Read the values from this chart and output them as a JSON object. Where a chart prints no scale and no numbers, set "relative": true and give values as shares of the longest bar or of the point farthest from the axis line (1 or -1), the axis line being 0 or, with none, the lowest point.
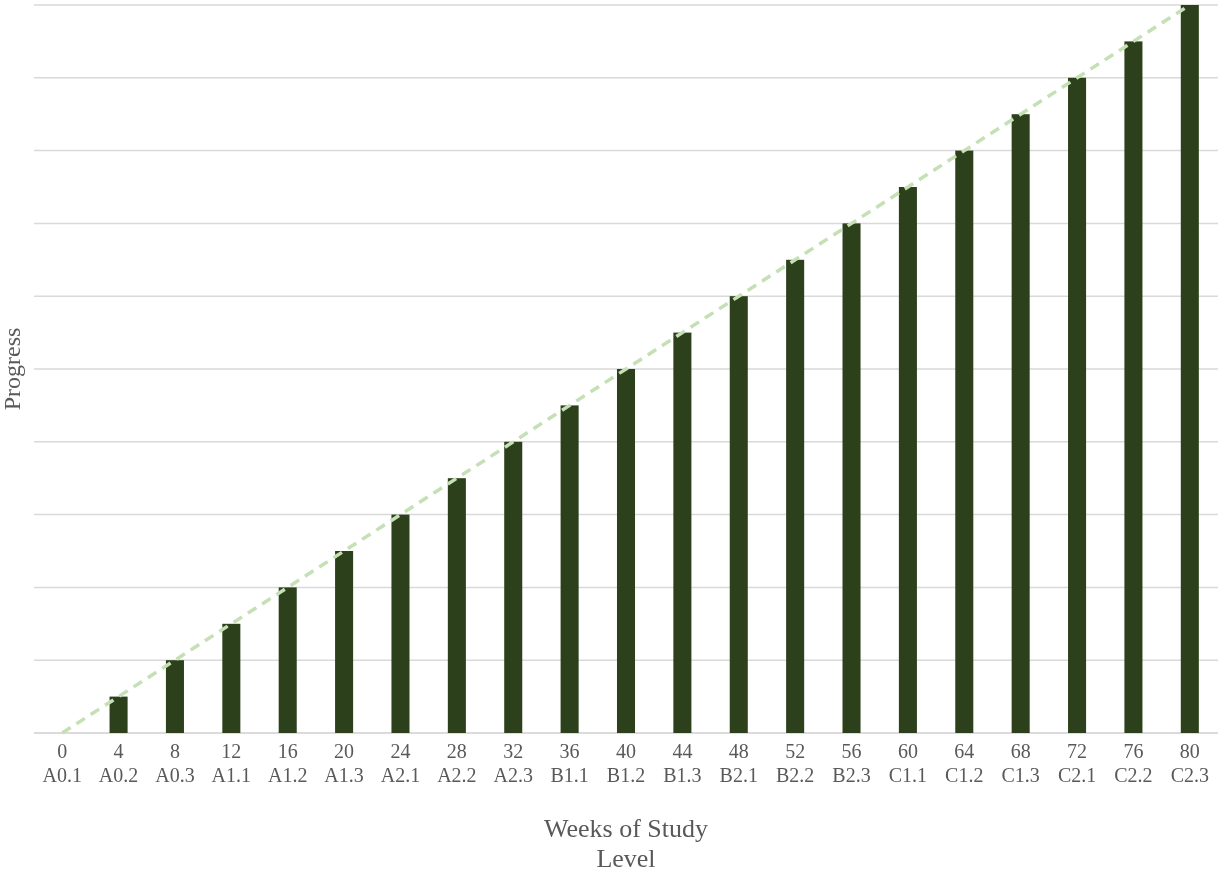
{
  "chart_data": {
    "type": "bar",
    "relative": true,
    "ylabel": "Progress",
    "xlabel": "Weeks of Study\nLevel",
    "grid": "y",
    "categories": [
      "0\nA0.1",
      "4\nA0.2",
      "8\nA0.3",
      "12\nA1.1",
      "16\nA1.2",
      "20\nA1.3",
      "24\nA2.1",
      "28\nA2.2",
      "32\nA2.3",
      "36\nB1.1",
      "40\nB1.2",
      "44\nB1.3",
      "48\nB2.1",
      "52\nB2.2",
      "56\nB2.3",
      "60\nC1.1",
      "64\nC1.2",
      "68\nC1.3",
      "72\nC2.1",
      "76\nC2.2",
      "80\nC2.3"
    ],
    "series": [
      {
        "color": "#2c411b",
        "values": [
          0,
          0.05,
          0.1,
          0.15,
          0.2,
          0.25,
          0.3,
          0.35,
          0.4,
          0.45,
          0.5,
          0.55,
          0.6,
          0.65,
          0.7,
          0.75,
          0.8,
          0.85,
          0.9,
          0.95,
          1
        ]
      },
      {
        "type": "line",
        "color": "#c5e0b4",
        "line_style": "dashed",
        "marker": "none",
        "values": [
          0,
          0.05,
          0.1,
          0.15,
          0.2,
          0.25,
          0.3,
          0.35,
          0.4,
          0.45,
          0.5,
          0.55,
          0.6,
          0.65,
          0.7,
          0.75,
          0.8,
          0.85,
          0.9,
          0.95,
          1
        ]
      }
    ]
  }
}
